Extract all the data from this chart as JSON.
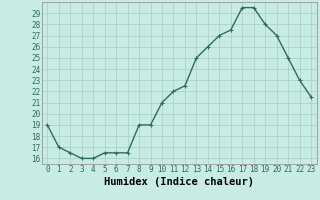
{
  "x": [
    0,
    1,
    2,
    3,
    4,
    5,
    6,
    7,
    8,
    9,
    10,
    11,
    12,
    13,
    14,
    15,
    16,
    17,
    18,
    19,
    20,
    21,
    22,
    23
  ],
  "y": [
    19,
    17,
    16.5,
    16,
    16,
    16.5,
    16.5,
    16.5,
    19,
    19,
    21,
    22,
    22.5,
    25,
    26,
    27,
    27.5,
    29.5,
    29.5,
    28,
    27,
    25,
    23,
    21.5
  ],
  "line_color": "#2e6b5e",
  "marker": "+",
  "marker_color": "#2e6b5e",
  "bg_color": "#c8ece4",
  "grid_color": "#aad4cc",
  "xlabel": "Humidex (Indice chaleur)",
  "xlim": [
    -0.5,
    23.5
  ],
  "ylim": [
    15.5,
    30.0
  ],
  "yticks": [
    16,
    17,
    18,
    19,
    20,
    21,
    22,
    23,
    24,
    25,
    26,
    27,
    28,
    29
  ],
  "xticks": [
    0,
    1,
    2,
    3,
    4,
    5,
    6,
    7,
    8,
    9,
    10,
    11,
    12,
    13,
    14,
    15,
    16,
    17,
    18,
    19,
    20,
    21,
    22,
    23
  ],
  "tick_label_fontsize": 5.5,
  "xlabel_fontsize": 7.5,
  "line_width": 1.0,
  "marker_size": 3.5
}
